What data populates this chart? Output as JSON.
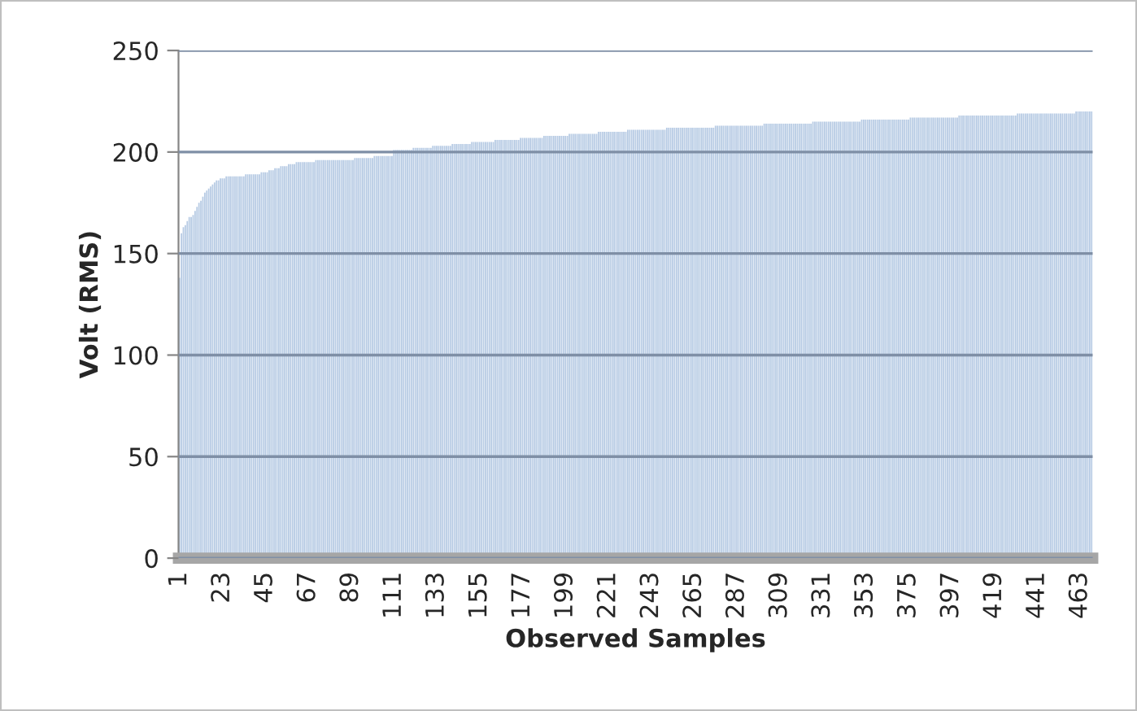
{
  "chart_data": {
    "type": "bar",
    "xlabel": "Observed Samples",
    "ylabel": "Volt (RMS)",
    "color": "#b7cbe4",
    "ylim": [
      0,
      250
    ],
    "yticks": [
      0,
      50,
      100,
      150,
      200,
      250
    ],
    "grid": "y",
    "legend": false,
    "categories": [
      "1",
      null,
      null,
      null,
      null,
      null,
      null,
      null,
      null,
      null,
      null,
      null,
      null,
      null,
      null,
      null,
      null,
      null,
      null,
      null,
      null,
      null,
      "23",
      null,
      null,
      null,
      null,
      null,
      null,
      null,
      null,
      null,
      null,
      null,
      null,
      null,
      null,
      null,
      null,
      null,
      null,
      null,
      null,
      null,
      "45",
      null,
      null,
      null,
      null,
      null,
      null,
      null,
      null,
      null,
      null,
      null,
      null,
      null,
      null,
      null,
      null,
      null,
      null,
      null,
      null,
      null,
      "67",
      null,
      null,
      null,
      null,
      null,
      null,
      null,
      null,
      null,
      null,
      null,
      null,
      null,
      null,
      null,
      null,
      null,
      null,
      null,
      null,
      null,
      "89",
      null,
      null,
      null,
      null,
      null,
      null,
      null,
      null,
      null,
      null,
      null,
      null,
      null,
      null,
      null,
      null,
      null,
      null,
      null,
      null,
      null,
      "111",
      null,
      null,
      null,
      null,
      null,
      null,
      null,
      null,
      null,
      null,
      null,
      null,
      null,
      null,
      null,
      null,
      null,
      null,
      null,
      null,
      null,
      "133",
      null,
      null,
      null,
      null,
      null,
      null,
      null,
      null,
      null,
      null,
      null,
      null,
      null,
      null,
      null,
      null,
      null,
      null,
      null,
      null,
      null,
      "155",
      null,
      null,
      null,
      null,
      null,
      null,
      null,
      null,
      null,
      null,
      null,
      null,
      null,
      null,
      null,
      null,
      null,
      null,
      null,
      null,
      null,
      "177",
      null,
      null,
      null,
      null,
      null,
      null,
      null,
      null,
      null,
      null,
      null,
      null,
      null,
      null,
      null,
      null,
      null,
      null,
      null,
      null,
      null,
      "199",
      null,
      null,
      null,
      null,
      null,
      null,
      null,
      null,
      null,
      null,
      null,
      null,
      null,
      null,
      null,
      null,
      null,
      null,
      null,
      null,
      null,
      "221",
      null,
      null,
      null,
      null,
      null,
      null,
      null,
      null,
      null,
      null,
      null,
      null,
      null,
      null,
      null,
      null,
      null,
      null,
      null,
      null,
      null,
      "243",
      null,
      null,
      null,
      null,
      null,
      null,
      null,
      null,
      null,
      null,
      null,
      null,
      null,
      null,
      null,
      null,
      null,
      null,
      null,
      null,
      null,
      "265",
      null,
      null,
      null,
      null,
      null,
      null,
      null,
      null,
      null,
      null,
      null,
      null,
      null,
      null,
      null,
      null,
      null,
      null,
      null,
      null,
      null,
      "287",
      null,
      null,
      null,
      null,
      null,
      null,
      null,
      null,
      null,
      null,
      null,
      null,
      null,
      null,
      null,
      null,
      null,
      null,
      null,
      null,
      null,
      "309",
      null,
      null,
      null,
      null,
      null,
      null,
      null,
      null,
      null,
      null,
      null,
      null,
      null,
      null,
      null,
      null,
      null,
      null,
      null,
      null,
      null,
      "331",
      null,
      null,
      null,
      null,
      null,
      null,
      null,
      null,
      null,
      null,
      null,
      null,
      null,
      null,
      null,
      null,
      null,
      null,
      null,
      null,
      null,
      "353",
      null,
      null,
      null,
      null,
      null,
      null,
      null,
      null,
      null,
      null,
      null,
      null,
      null,
      null,
      null,
      null,
      null,
      null,
      null,
      null,
      null,
      "375",
      null,
      null,
      null,
      null,
      null,
      null,
      null,
      null,
      null,
      null,
      null,
      null,
      null,
      null,
      null,
      null,
      null,
      null,
      null,
      null,
      null,
      "397",
      null,
      null,
      null,
      null,
      null,
      null,
      null,
      null,
      null,
      null,
      null,
      null,
      null,
      null,
      null,
      null,
      null,
      null,
      null,
      null,
      null,
      "419",
      null,
      null,
      null,
      null,
      null,
      null,
      null,
      null,
      null,
      null,
      null,
      null,
      null,
      null,
      null,
      null,
      null,
      null,
      null,
      null,
      null,
      "441",
      null,
      null,
      null,
      null,
      null,
      null,
      null,
      null,
      null,
      null,
      null,
      null,
      null,
      null,
      null,
      null,
      null,
      null,
      null,
      null,
      null,
      "463",
      null,
      null,
      null,
      null,
      null,
      null
    ],
    "values": [
      138,
      160,
      163,
      164,
      166,
      168,
      168,
      169,
      171,
      173,
      175,
      176,
      178,
      180,
      181,
      182,
      183,
      184,
      185,
      186,
      186,
      187,
      187,
      187,
      188,
      188,
      188,
      188,
      188,
      188,
      188,
      188,
      188,
      188,
      189,
      189,
      189,
      189,
      189,
      189,
      189,
      189,
      190,
      190,
      190,
      190,
      191,
      191,
      191,
      192,
      192,
      192,
      193,
      193,
      193,
      193,
      194,
      194,
      194,
      194,
      195,
      195,
      195,
      195,
      195,
      195,
      195,
      195,
      195,
      195,
      196,
      196,
      196,
      196,
      196,
      196,
      196,
      196,
      196,
      196,
      196,
      196,
      196,
      196,
      196,
      196,
      196,
      196,
      196,
      196,
      197,
      197,
      197,
      197,
      197,
      197,
      197,
      197,
      197,
      197,
      198,
      198,
      198,
      198,
      198,
      198,
      198,
      198,
      198,
      198,
      201,
      201,
      201,
      201,
      201,
      201,
      201,
      201,
      201,
      201,
      202,
      202,
      202,
      202,
      202,
      202,
      202,
      202,
      202,
      202,
      203,
      203,
      203,
      203,
      203,
      203,
      203,
      203,
      203,
      203,
      204,
      204,
      204,
      204,
      204,
      204,
      204,
      204,
      204,
      204,
      205,
      205,
      205,
      205,
      205,
      205,
      205,
      205,
      205,
      205,
      205,
      205,
      206,
      206,
      206,
      206,
      206,
      206,
      206,
      206,
      206,
      206,
      206,
      206,
      206,
      207,
      207,
      207,
      207,
      207,
      207,
      207,
      207,
      207,
      207,
      207,
      207,
      208,
      208,
      208,
      208,
      208,
      208,
      208,
      208,
      208,
      208,
      208,
      208,
      208,
      209,
      209,
      209,
      209,
      209,
      209,
      209,
      209,
      209,
      209,
      209,
      209,
      209,
      209,
      209,
      210,
      210,
      210,
      210,
      210,
      210,
      210,
      210,
      210,
      210,
      210,
      210,
      210,
      210,
      210,
      211,
      211,
      211,
      211,
      211,
      211,
      211,
      211,
      211,
      211,
      211,
      211,
      211,
      211,
      211,
      211,
      211,
      211,
      211,
      211,
      212,
      212,
      212,
      212,
      212,
      212,
      212,
      212,
      212,
      212,
      212,
      212,
      212,
      212,
      212,
      212,
      212,
      212,
      212,
      212,
      212,
      212,
      212,
      212,
      212,
      213,
      213,
      213,
      213,
      213,
      213,
      213,
      213,
      213,
      213,
      213,
      213,
      213,
      213,
      213,
      213,
      213,
      213,
      213,
      213,
      213,
      213,
      213,
      213,
      213,
      214,
      214,
      214,
      214,
      214,
      214,
      214,
      214,
      214,
      214,
      214,
      214,
      214,
      214,
      214,
      214,
      214,
      214,
      214,
      214,
      214,
      214,
      214,
      214,
      214,
      215,
      215,
      215,
      215,
      215,
      215,
      215,
      215,
      215,
      215,
      215,
      215,
      215,
      215,
      215,
      215,
      215,
      215,
      215,
      215,
      215,
      215,
      215,
      215,
      215,
      216,
      216,
      216,
      216,
      216,
      216,
      216,
      216,
      216,
      216,
      216,
      216,
      216,
      216,
      216,
      216,
      216,
      216,
      216,
      216,
      216,
      216,
      216,
      216,
      216,
      217,
      217,
      217,
      217,
      217,
      217,
      217,
      217,
      217,
      217,
      217,
      217,
      217,
      217,
      217,
      217,
      217,
      217,
      217,
      217,
      217,
      217,
      217,
      217,
      217,
      218,
      218,
      218,
      218,
      218,
      218,
      218,
      218,
      218,
      218,
      218,
      218,
      218,
      218,
      218,
      218,
      218,
      218,
      218,
      218,
      218,
      218,
      218,
      218,
      218,
      218,
      218,
      218,
      218,
      218,
      219,
      219,
      219,
      219,
      219,
      219,
      219,
      219,
      219,
      219,
      219,
      219,
      219,
      219,
      219,
      219,
      219,
      219,
      219,
      219,
      219,
      219,
      219,
      219,
      219,
      219,
      219,
      219,
      219,
      219,
      220,
      220,
      220,
      220,
      220,
      220,
      220,
      220,
      220
    ]
  }
}
